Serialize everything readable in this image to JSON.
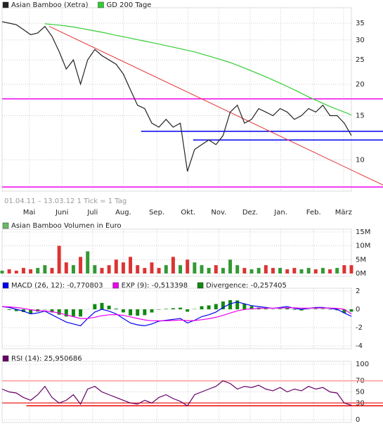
{
  "chart_data": [
    {
      "type": "line",
      "log": true,
      "ylim": [
        7.7,
        39.3
      ],
      "yticks": [
        10,
        15,
        20,
        25,
        30,
        35
      ],
      "xlim": [
        0,
        49
      ],
      "xticks": [
        {
          "value": 3.8,
          "label": "Mai"
        },
        {
          "value": 8.4,
          "label": "Juni"
        },
        {
          "value": 12.7,
          "label": "Juli"
        },
        {
          "value": 17,
          "label": "Aug."
        },
        {
          "value": 21.7,
          "label": "Sep."
        },
        {
          "value": 26.1,
          "label": "Okt."
        },
        {
          "value": 30.4,
          "label": "Nov."
        },
        {
          "value": 34.8,
          "label": "Dez."
        },
        {
          "value": 39.1,
          "label": "Jan."
        },
        {
          "value": 43.7,
          "label": "Feb."
        },
        {
          "value": 47.9,
          "label": "März"
        }
      ],
      "note": "01.04.11 – 13.03.12   1 Tick = 1 Tag",
      "grid": true,
      "series": [
        {
          "name": "Asian Bamboo (Xetra)",
          "color": "#222222",
          "values": [
            35.5,
            35,
            34.5,
            33,
            31.5,
            32,
            34,
            31,
            27,
            23,
            25,
            20,
            25,
            27.5,
            26,
            25,
            24,
            22,
            19,
            16.5,
            16,
            14,
            13.5,
            14.5,
            13.5,
            14,
            9,
            11,
            11.5,
            12,
            11.5,
            12.5,
            15.5,
            16.5,
            14,
            14.5,
            16,
            15.5,
            15,
            16,
            15.5,
            14.5,
            15,
            16,
            15.5,
            16.5,
            15,
            15,
            14,
            12.5
          ]
        },
        {
          "name": "GD 200 Tage",
          "color": "#33cc33",
          "values": [
            null,
            null,
            null,
            null,
            null,
            null,
            34.8,
            34.6,
            34.4,
            34.1,
            33.8,
            33.4,
            33,
            32.6,
            32.2,
            31.8,
            31.3,
            30.9,
            30.5,
            30.1,
            29.7,
            29.3,
            28.9,
            28.5,
            28.1,
            27.7,
            27.3,
            26.9,
            26.4,
            25.9,
            25.4,
            24.9,
            24.4,
            23.8,
            23.2,
            22.6,
            22,
            21.4,
            20.8,
            20.2,
            19.6,
            19,
            18.4,
            17.8,
            17.3,
            16.8,
            16.3,
            15.9,
            15.5,
            15.1
          ]
        }
      ],
      "levels": [
        {
          "value": 17.5,
          "color": "#ee00ee",
          "from": 0
        },
        {
          "value": 7.8,
          "color": "#ee00ee",
          "from": 0
        },
        {
          "value": 13,
          "color": "#0000ee",
          "from": 19.5
        },
        {
          "value": 12,
          "color": "#0000ee",
          "from": 26.8
        }
      ],
      "trendline": {
        "x": [
          6.6,
          53.6
        ],
        "y": [
          34,
          7.9
        ],
        "color": "#e33333"
      }
    },
    {
      "type": "bar",
      "title": "Asian Bamboo Volumen in Euro",
      "title_color": "#66bb66",
      "ylim": [
        0,
        15
      ],
      "xlim": [
        0,
        49
      ],
      "grid": true,
      "yticks": [
        {
          "value": 0,
          "label": "0M"
        },
        {
          "value": 5,
          "label": "5M"
        },
        {
          "value": 10,
          "label": "10M"
        },
        {
          "value": 15,
          "label": "15M"
        }
      ],
      "colors": {
        "up": "#339933",
        "down": "#dd3333"
      },
      "values": [
        1,
        1.5,
        1,
        2,
        1.5,
        2,
        3,
        2,
        10,
        4,
        3,
        6,
        8,
        3,
        2,
        3,
        5,
        4,
        6,
        3,
        2,
        4,
        2,
        3,
        6,
        3,
        5,
        4,
        3,
        2,
        3,
        2,
        5,
        3,
        2,
        1.5,
        2,
        3,
        2,
        2,
        1.5,
        2,
        1.5,
        2,
        1.5,
        2,
        1.5,
        2,
        3,
        3
      ]
    },
    {
      "type": "line",
      "ylim": [
        -4,
        2
      ],
      "yticks": [
        -4,
        -2,
        0,
        2
      ],
      "xlim": [
        0,
        49
      ],
      "grid": true,
      "series": [
        {
          "name": "Divergence: -0,257405",
          "color": "#118811",
          "style": "bar",
          "values": [
            0,
            -0.07,
            -0.2,
            -0.3,
            -0.45,
            -0.25,
            -0.03,
            -0.34,
            -0.59,
            -0.79,
            -0.79,
            -0.79,
            0.01,
            0.57,
            0.7,
            0.4,
            0.08,
            -0.34,
            -0.67,
            -0.7,
            -0.64,
            -0.35,
            -0.04,
            0.05,
            0.12,
            0.18,
            -0.26,
            0.03,
            0.34,
            0.43,
            0.58,
            0.86,
            1.01,
            0.97,
            0.62,
            0.34,
            0.19,
            0.07,
            -0.02,
            0.06,
            0.13,
            -0.06,
            -0.13,
            -0.02,
            0.06,
            0.05,
            -0.04,
            -0.11,
            -0.4,
            -0.26
          ]
        },
        {
          "name": "MACD (26, 12): -0,770803",
          "color": "#0000ee",
          "values": [
            0.3,
            0.2,
            0,
            -0.2,
            -0.5,
            -0.4,
            -0.2,
            -0.6,
            -1,
            -1.4,
            -1.6,
            -1.8,
            -1,
            -0.3,
            0,
            -0.2,
            -0.5,
            -1,
            -1.5,
            -1.7,
            -1.8,
            -1.6,
            -1.3,
            -1.2,
            -1.1,
            -1,
            -1.5,
            -1.2,
            -0.8,
            -0.6,
            -0.3,
            0.2,
            0.6,
            0.8,
            0.6,
            0.4,
            0.3,
            0.2,
            0.1,
            0.2,
            0.3,
            0.1,
            0,
            0.1,
            0.2,
            0.2,
            0.1,
            0,
            -0.4,
            -0.77
          ]
        },
        {
          "name": "EXP (9): -0,513398",
          "color": "#ee00ee",
          "values": [
            0.3,
            0.27,
            0.2,
            0.1,
            -0.05,
            -0.15,
            -0.17,
            -0.26,
            -0.41,
            -0.61,
            -0.81,
            -1.01,
            -1.01,
            -0.87,
            -0.7,
            -0.6,
            -0.58,
            -0.66,
            -0.83,
            -1,
            -1.16,
            -1.25,
            -1.26,
            -1.25,
            -1.22,
            -1.18,
            -1.24,
            -1.23,
            -1.14,
            -1.03,
            -0.88,
            -0.66,
            -0.41,
            -0.17,
            -0.02,
            0.06,
            0.11,
            0.13,
            0.12,
            0.14,
            0.17,
            0.16,
            0.13,
            0.12,
            0.14,
            0.15,
            0.14,
            0.11,
            0,
            -0.51
          ]
        }
      ],
      "legend_order": [
        1,
        2,
        0
      ]
    },
    {
      "type": "line",
      "ylim": [
        0,
        100
      ],
      "yticks": [
        0,
        30,
        50,
        70,
        100
      ],
      "xlim": [
        0,
        49
      ],
      "grid": true,
      "series": [
        {
          "name": "RSI (14): 25,950686",
          "color": "#660066",
          "values": [
            55,
            50,
            48,
            40,
            35,
            45,
            60,
            40,
            30,
            35,
            45,
            28,
            55,
            60,
            50,
            45,
            40,
            35,
            30,
            28,
            35,
            30,
            40,
            45,
            38,
            33,
            25,
            45,
            50,
            55,
            60,
            70,
            65,
            55,
            60,
            58,
            62,
            55,
            52,
            58,
            50,
            55,
            52,
            60,
            55,
            58,
            50,
            48,
            30,
            26
          ]
        }
      ],
      "levels": [
        {
          "value": 70,
          "color": "#ff9999",
          "from": 0
        },
        {
          "value": 30,
          "color": "#ee4444",
          "from": 0
        },
        {
          "value": 25,
          "color": "#ee0000",
          "from": 3.4
        }
      ]
    }
  ]
}
